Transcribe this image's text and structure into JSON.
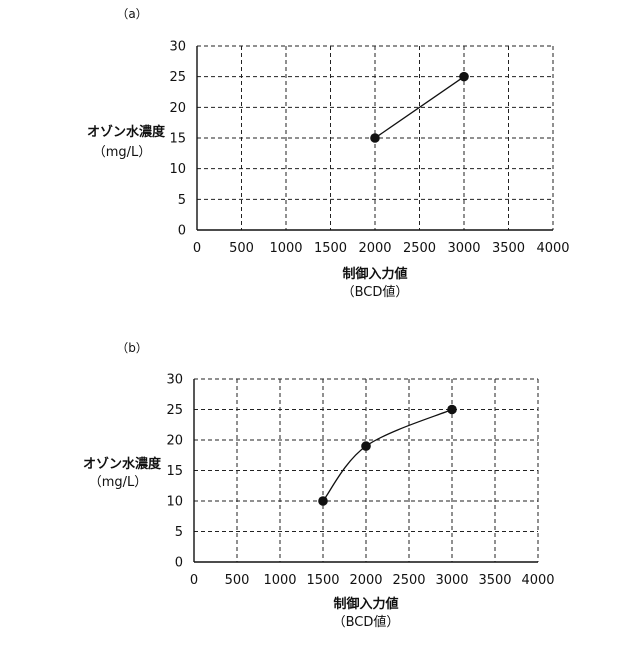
{
  "chart_data": [
    {
      "panel_label": "（a）",
      "type": "line",
      "ylabel_line1": "オゾン水濃度",
      "ylabel_line2": "（mg/L）",
      "xlabel_line1": "制御入力値",
      "xlabel_line2": "（BCD値）",
      "xlim": [
        0,
        4000
      ],
      "ylim": [
        0,
        30
      ],
      "x_ticks": [
        0,
        500,
        1000,
        1500,
        2000,
        2500,
        3000,
        3500,
        4000
      ],
      "y_ticks": [
        0,
        5,
        10,
        15,
        20,
        25,
        30
      ],
      "x_tick_labels": [
        "0",
        "500",
        "1000",
        "1500",
        "2000",
        "2500",
        "3000",
        "3500",
        "4000"
      ],
      "y_tick_labels": [
        "0",
        "5",
        "10",
        "15",
        "20",
        "25",
        "30"
      ],
      "grid": "dashed",
      "curve": "straight",
      "series": [
        {
          "x": [
            2000,
            3000
          ],
          "y": [
            15,
            25
          ]
        }
      ]
    },
    {
      "panel_label": "（b）",
      "type": "line",
      "ylabel_line1": "オゾン水濃度",
      "ylabel_line2": "（mg/L）",
      "xlabel_line1": "制御入力値",
      "xlabel_line2": "（BCD値）",
      "xlim": [
        0,
        4000
      ],
      "ylim": [
        0,
        30
      ],
      "x_ticks": [
        0,
        500,
        1000,
        1500,
        2000,
        2500,
        3000,
        3500,
        4000
      ],
      "y_ticks": [
        0,
        5,
        10,
        15,
        20,
        25,
        30
      ],
      "x_tick_labels": [
        "0",
        "500",
        "1000",
        "1500",
        "2000",
        "2500",
        "3000",
        "3500",
        "4000"
      ],
      "y_tick_labels": [
        "0",
        "5",
        "10",
        "15",
        "20",
        "25",
        "30"
      ],
      "grid": "dashed",
      "curve": "smooth",
      "series": [
        {
          "x": [
            1500,
            2000,
            3000
          ],
          "y": [
            10,
            19,
            25
          ]
        }
      ]
    }
  ]
}
